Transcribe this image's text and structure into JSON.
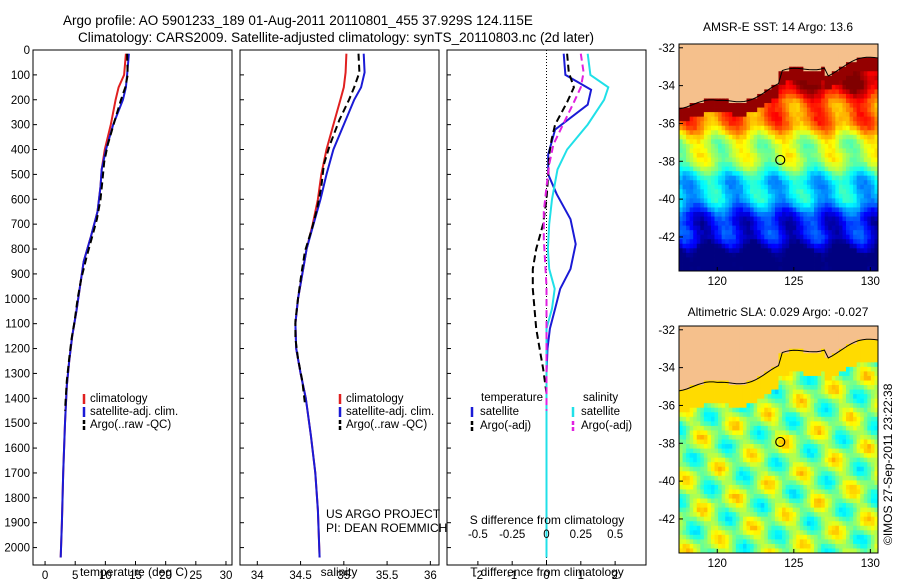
{
  "title_line1": "Argo profile: AO 5901233_189 01-Aug-2011 20110801_455 37.929S 124.115E",
  "title_line2": "Climatology: CARS2009. Satellite-adjusted climatology: synTS_20110803.nc (2d later)",
  "colors": {
    "climatology": "#e02020",
    "satellite": "#1a1ad6",
    "argo": "#000000",
    "sal_satellite": "#20e0e8",
    "sal_argo": "#e020e0"
  },
  "chart_data": [
    {
      "type": "line",
      "name": "temperature",
      "xlabel": "temperature (deg C)",
      "ylabel": "",
      "xlim": [
        -2,
        31
      ],
      "ylim": [
        2070,
        0
      ],
      "xticks": [
        "0",
        "5",
        "10",
        "15",
        "20",
        "25",
        "30"
      ],
      "yticks": [
        "0",
        "100",
        "200",
        "300",
        "400",
        "500",
        "600",
        "700",
        "800",
        "900",
        "1000",
        "1100",
        "1200",
        "1300",
        "1400",
        "1500",
        "1600",
        "1700",
        "1800",
        "1900",
        "2000"
      ],
      "legend": [
        "climatology",
        "satellite-adj. clim.",
        "Argo(..raw -QC)"
      ],
      "series": [
        {
          "name": "climatology",
          "points": [
            [
              13.4,
              15
            ],
            [
              13.1,
              100
            ],
            [
              12.2,
              150
            ],
            [
              11.7,
              200
            ],
            [
              10.9,
              300
            ],
            [
              9.9,
              400
            ],
            [
              9.4,
              480
            ],
            [
              9.2,
              550
            ],
            [
              8.7,
              650
            ],
            [
              7.6,
              750
            ],
            [
              6.4,
              850
            ],
            [
              5.8,
              950
            ],
            [
              5.2,
              1050
            ],
            [
              4.5,
              1150
            ],
            [
              4.0,
              1250
            ],
            [
              3.6,
              1350
            ],
            [
              3.3,
              1500
            ],
            [
              3.0,
              1700
            ],
            [
              2.8,
              1900
            ],
            [
              2.6,
              2040
            ]
          ]
        },
        {
          "name": "satellite-adj. clim.",
          "points": [
            [
              13.9,
              15
            ],
            [
              13.6,
              100
            ],
            [
              13.4,
              150
            ],
            [
              12.9,
              200
            ],
            [
              11.3,
              300
            ],
            [
              10.1,
              400
            ],
            [
              9.4,
              480
            ],
            [
              9.2,
              550
            ],
            [
              8.7,
              650
            ],
            [
              7.6,
              750
            ],
            [
              6.4,
              850
            ],
            [
              5.8,
              950
            ],
            [
              5.2,
              1050
            ],
            [
              4.5,
              1150
            ],
            [
              4.0,
              1250
            ],
            [
              3.6,
              1350
            ],
            [
              3.3,
              1500
            ],
            [
              3.0,
              1700
            ],
            [
              2.8,
              1900
            ],
            [
              2.6,
              2040
            ]
          ]
        },
        {
          "name": "Argo(..raw -QC)",
          "points": [
            [
              13.6,
              15
            ],
            [
              13.7,
              100
            ],
            [
              13.3,
              150
            ],
            [
              12.6,
              200
            ],
            [
              11.6,
              280
            ],
            [
              10.4,
              380
            ],
            [
              9.8,
              450
            ],
            [
              9.5,
              530
            ],
            [
              9.2,
              600
            ],
            [
              8.6,
              680
            ],
            [
              7.7,
              760
            ],
            [
              6.9,
              830
            ],
            [
              6.0,
              920
            ],
            [
              5.4,
              1000
            ],
            [
              4.9,
              1090
            ],
            [
              4.4,
              1160
            ],
            [
              4.0,
              1240
            ],
            [
              3.6,
              1330
            ],
            [
              3.3,
              1450
            ]
          ]
        }
      ]
    },
    {
      "type": "line",
      "name": "salinity",
      "xlabel": "salinity",
      "ylabel": "",
      "xlim": [
        33.8,
        36.1
      ],
      "ylim": [
        2070,
        0
      ],
      "xticks": [
        "34",
        "34.5",
        "35",
        "35.5",
        "36"
      ],
      "legend": [
        "climatology",
        "satellite-adj. clim.",
        "Argo(..raw -QC)"
      ],
      "annotations": [
        "US ARGO PROJECT",
        "PI: DEAN ROEMMICH"
      ],
      "series": [
        {
          "name": "climatology",
          "points": [
            [
              35.03,
              15
            ],
            [
              35.02,
              90
            ],
            [
              35.0,
              150
            ],
            [
              34.96,
              200
            ],
            [
              34.88,
              300
            ],
            [
              34.8,
              400
            ],
            [
              34.74,
              500
            ],
            [
              34.7,
              600
            ],
            [
              34.64,
              700
            ],
            [
              34.57,
              800
            ],
            [
              34.52,
              900
            ],
            [
              34.47,
              1000
            ],
            [
              34.44,
              1100
            ],
            [
              34.45,
              1200
            ],
            [
              34.5,
              1300
            ],
            [
              34.56,
              1400
            ],
            [
              34.62,
              1550
            ],
            [
              34.67,
              1700
            ],
            [
              34.7,
              1850
            ],
            [
              34.72,
              2040
            ]
          ]
        },
        {
          "name": "satellite-adj. clim.",
          "points": [
            [
              35.23,
              15
            ],
            [
              35.24,
              90
            ],
            [
              35.2,
              150
            ],
            [
              35.12,
              200
            ],
            [
              35.0,
              300
            ],
            [
              34.88,
              400
            ],
            [
              34.8,
              500
            ],
            [
              34.73,
              600
            ],
            [
              34.65,
              700
            ],
            [
              34.57,
              800
            ],
            [
              34.52,
              900
            ],
            [
              34.47,
              1000
            ],
            [
              34.44,
              1100
            ],
            [
              34.45,
              1200
            ],
            [
              34.5,
              1300
            ],
            [
              34.56,
              1400
            ],
            [
              34.62,
              1550
            ],
            [
              34.67,
              1700
            ],
            [
              34.7,
              1850
            ],
            [
              34.72,
              2040
            ]
          ]
        },
        {
          "name": "Argo(..raw -QC)",
          "points": [
            [
              35.17,
              15
            ],
            [
              35.18,
              90
            ],
            [
              35.12,
              150
            ],
            [
              35.06,
              200
            ],
            [
              34.95,
              280
            ],
            [
              34.84,
              380
            ],
            [
              34.77,
              460
            ],
            [
              34.74,
              550
            ],
            [
              34.69,
              640
            ],
            [
              34.63,
              720
            ],
            [
              34.55,
              810
            ],
            [
              34.51,
              900
            ],
            [
              34.47,
              1000
            ],
            [
              34.44,
              1090
            ],
            [
              34.44,
              1160
            ],
            [
              34.47,
              1240
            ],
            [
              34.52,
              1330
            ],
            [
              34.55,
              1420
            ]
          ]
        }
      ]
    },
    {
      "type": "line",
      "name": "difference",
      "xlabel": "T difference from climatology",
      "xlabel_top": "S difference from climatology",
      "xlim": [
        -2.9,
        2.9
      ],
      "ylim": [
        2070,
        0
      ],
      "xticks": [
        "-2",
        "-1",
        "0",
        "1",
        "2"
      ],
      "xticks_salinity": [
        "-0.5",
        "-0.25",
        "0",
        "0.25",
        "0.5"
      ],
      "legend_headers": [
        "temperature",
        "salinity"
      ],
      "legend": [
        "satellite",
        "Argo(-adj)",
        "satellite",
        "Argo(-adj)"
      ],
      "series": [
        {
          "name": "temperature satellite",
          "points": [
            [
              0.5,
              15
            ],
            [
              0.55,
              100
            ],
            [
              1.3,
              160
            ],
            [
              1.2,
              220
            ],
            [
              0.25,
              320
            ],
            [
              0.05,
              420
            ],
            [
              0.05,
              500
            ],
            [
              0.3,
              580
            ],
            [
              0.7,
              680
            ],
            [
              0.85,
              780
            ],
            [
              0.7,
              880
            ],
            [
              0.4,
              960
            ],
            [
              0.25,
              1040
            ],
            [
              0.1,
              1120
            ],
            [
              0.03,
              1200
            ],
            [
              0.0,
              1300
            ],
            [
              0.0,
              1600
            ],
            [
              0.0,
              1800
            ],
            [
              0.0,
              2040
            ]
          ]
        },
        {
          "name": "temperature Argo(-adj)",
          "points": [
            [
              0.6,
              15
            ],
            [
              0.65,
              90
            ],
            [
              0.8,
              150
            ],
            [
              0.6,
              210
            ],
            [
              0.25,
              300
            ],
            [
              0.15,
              360
            ],
            [
              0.08,
              420
            ],
            [
              0.05,
              500
            ],
            [
              0.0,
              600
            ],
            [
              -0.1,
              700
            ],
            [
              -0.3,
              800
            ],
            [
              -0.4,
              880
            ],
            [
              -0.4,
              960
            ],
            [
              -0.35,
              1040
            ],
            [
              -0.3,
              1120
            ],
            [
              -0.2,
              1200
            ],
            [
              -0.1,
              1280
            ],
            [
              0.0,
              1380
            ],
            [
              0.0,
              1450
            ]
          ]
        },
        {
          "name": "salinity satellite",
          "points": [
            [
              0.3,
              15
            ],
            [
              0.32,
              100
            ],
            [
              0.45,
              150
            ],
            [
              0.42,
              200
            ],
            [
              0.3,
              300
            ],
            [
              0.15,
              400
            ],
            [
              0.08,
              480
            ],
            [
              0.04,
              600
            ],
            [
              0.02,
              700
            ],
            [
              0.01,
              800
            ],
            [
              0.02,
              880
            ],
            [
              0.06,
              960
            ],
            [
              0.04,
              1040
            ],
            [
              0.0,
              1120
            ],
            [
              0.0,
              1300
            ],
            [
              0.0,
              1600
            ],
            [
              0.0,
              2040
            ]
          ]
        },
        {
          "name": "salinity Argo(-adj)",
          "points": [
            [
              0.25,
              15
            ],
            [
              0.27,
              90
            ],
            [
              0.25,
              150
            ],
            [
              0.2,
              210
            ],
            [
              0.12,
              300
            ],
            [
              0.05,
              380
            ],
            [
              0.02,
              460
            ],
            [
              0.0,
              550
            ],
            [
              -0.02,
              650
            ],
            [
              -0.02,
              760
            ],
            [
              -0.01,
              850
            ],
            [
              0.0,
              950
            ],
            [
              0.0,
              1100
            ],
            [
              0.0,
              1300
            ],
            [
              0.0,
              1450
            ]
          ]
        }
      ]
    },
    {
      "type": "heatmap",
      "name": "sst_map",
      "title": "AMSR-E SST: 14 Argo: 13.6",
      "xlim": [
        117.5,
        130.5
      ],
      "ylim": [
        -43.8,
        -31.8
      ],
      "xticks": [
        "120",
        "125",
        "130"
      ],
      "yticks": [
        "-32",
        "-34",
        "-36",
        "-38",
        "-40",
        "-42"
      ],
      "marker": [
        124.115,
        -37.929
      ]
    },
    {
      "type": "heatmap",
      "name": "sla_map",
      "title": "Altimetric SLA: 0.029 Argo: -0.027",
      "xlim": [
        117.5,
        130.5
      ],
      "ylim": [
        -43.8,
        -31.8
      ],
      "xticks": [
        "120",
        "125",
        "130"
      ],
      "yticks": [
        "-32",
        "-34",
        "-36",
        "-38",
        "-40",
        "-42"
      ],
      "marker": [
        124.115,
        -37.929
      ]
    }
  ],
  "watermark": "©IMOS 27-Sep-2011 23:22:38"
}
